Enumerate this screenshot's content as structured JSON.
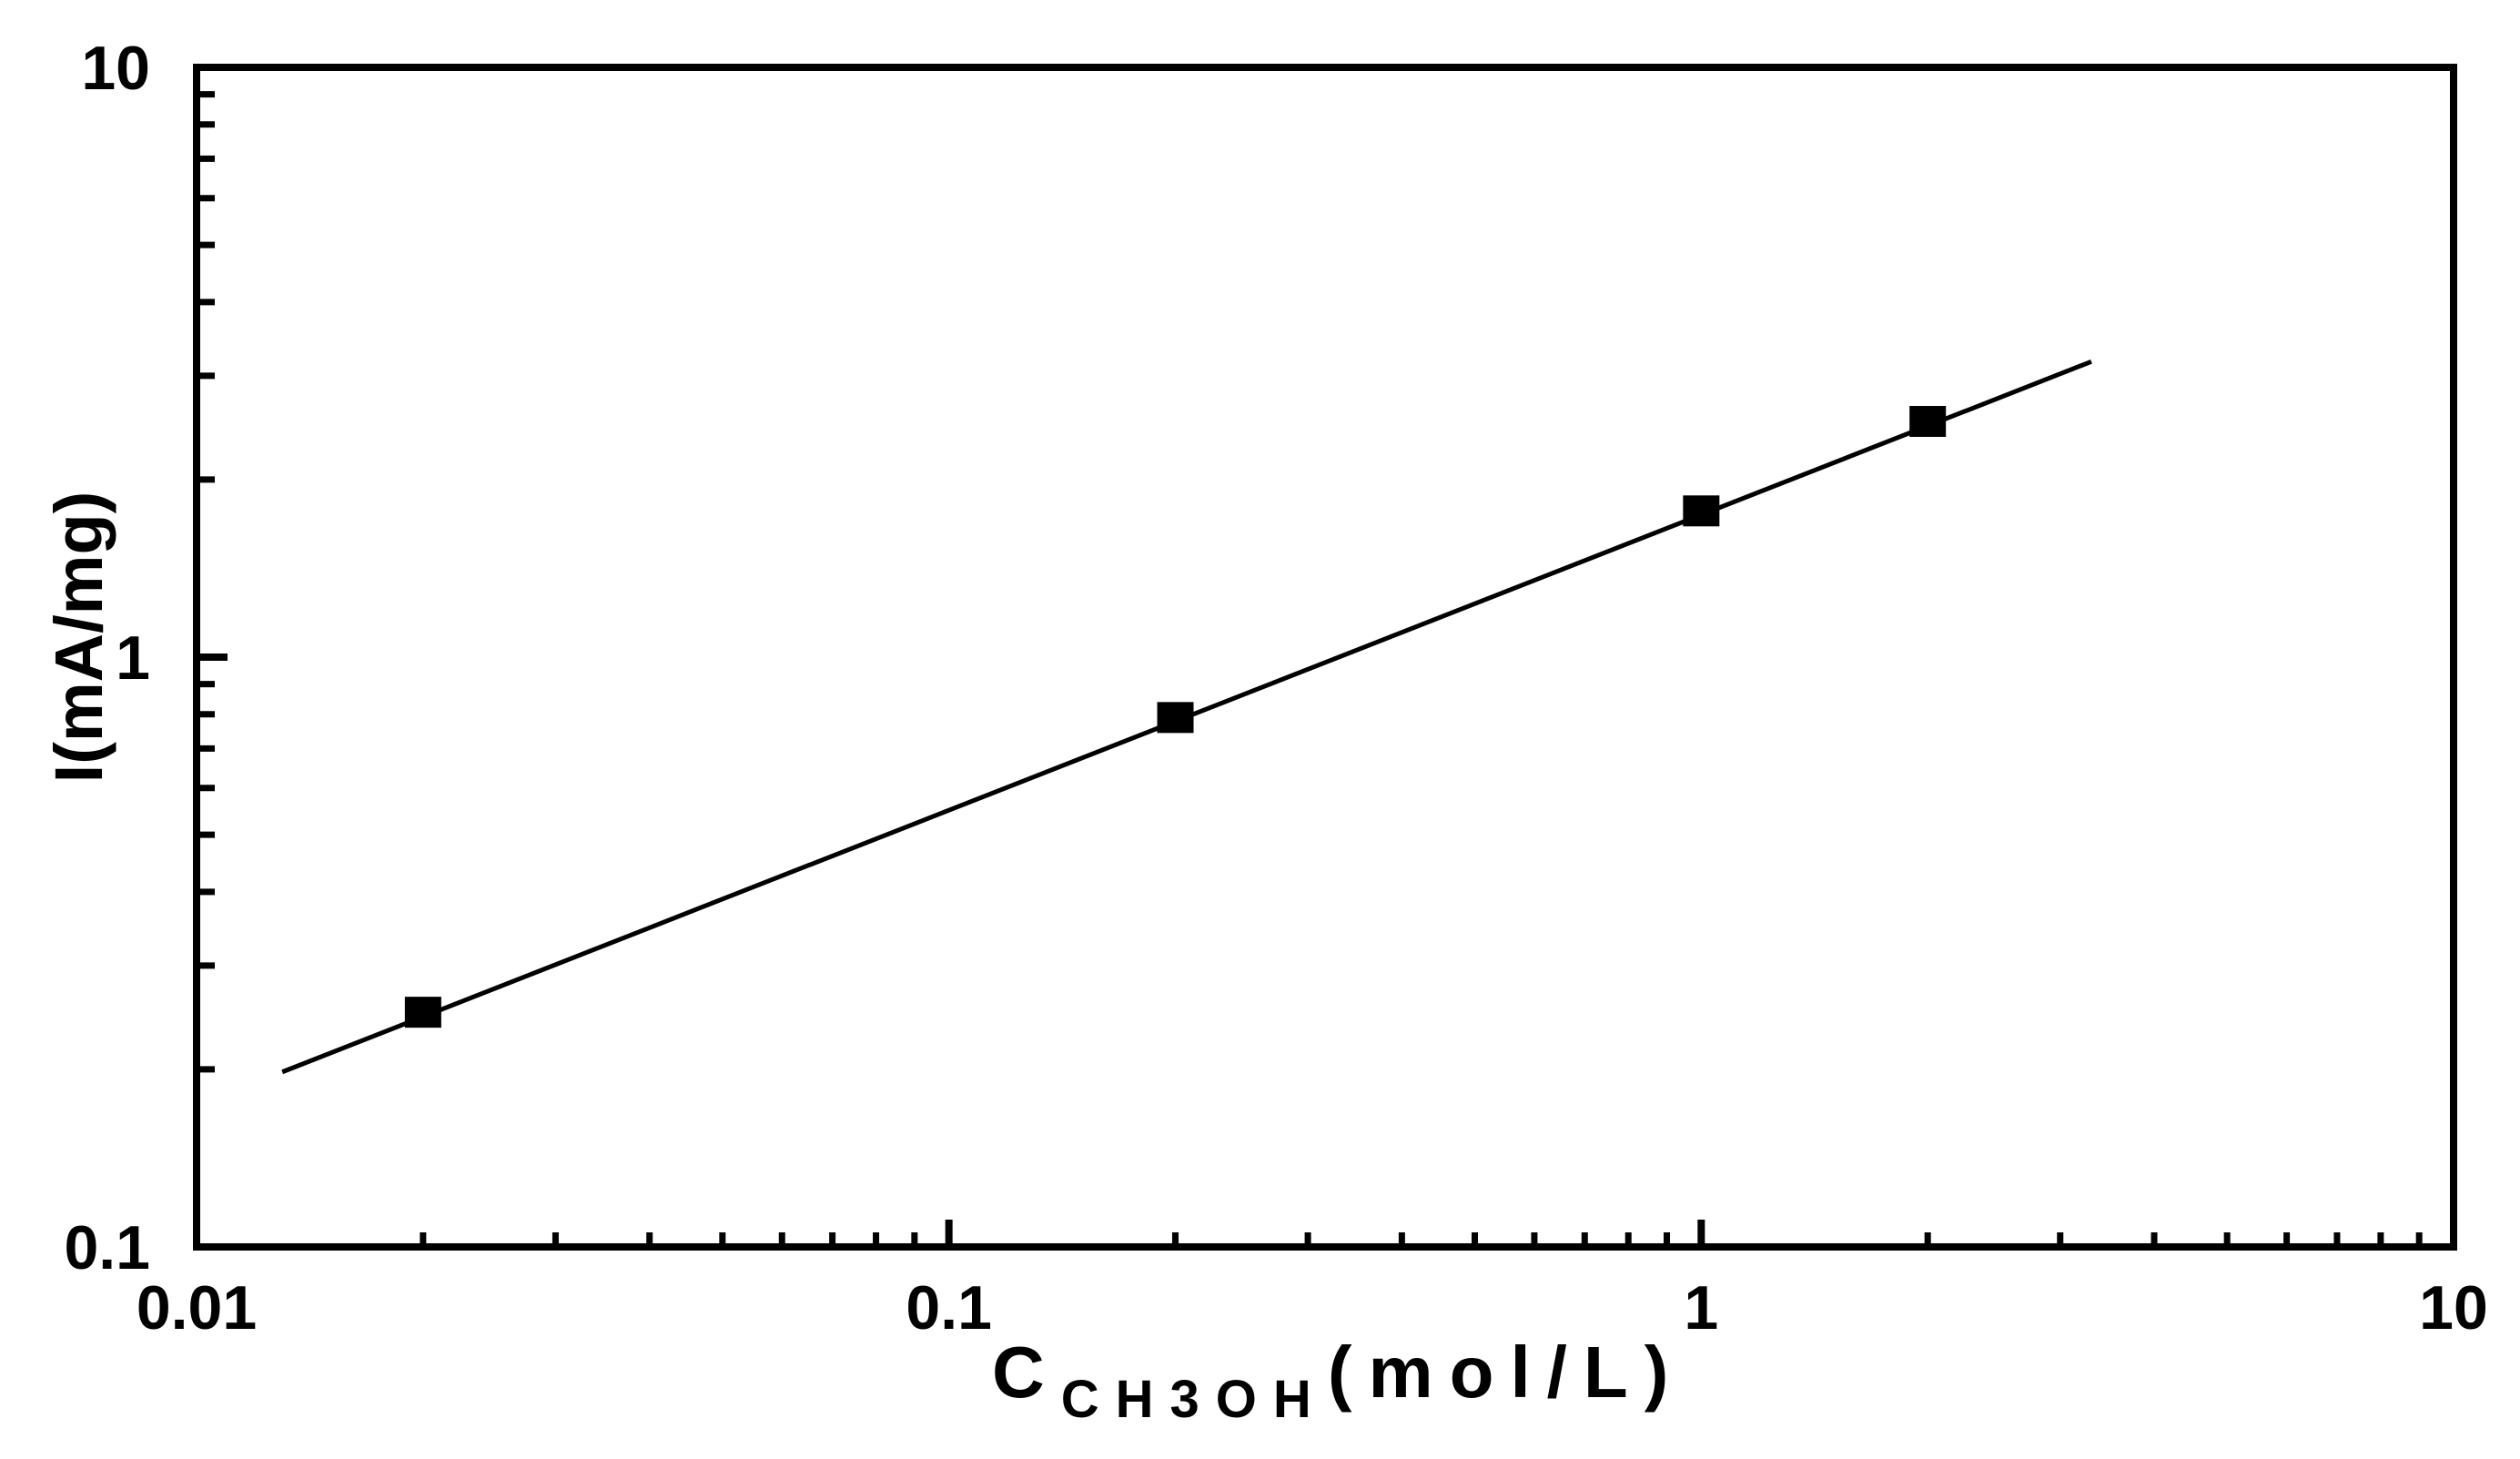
{
  "chart_data": {
    "type": "scatter",
    "x_scale": "log",
    "y_scale": "log",
    "xlim": [
      0.01,
      10
    ],
    "ylim": [
      0.1,
      10
    ],
    "x_ticks": [
      {
        "value": 0.01,
        "label": "0.01"
      },
      {
        "value": 0.1,
        "label": "0.1"
      },
      {
        "value": 1,
        "label": "1"
      },
      {
        "value": 10,
        "label": "10"
      }
    ],
    "y_ticks": [
      {
        "value": 0.1,
        "label": "0.1"
      },
      {
        "value": 1,
        "label": "1"
      },
      {
        "value": 10,
        "label": "10"
      }
    ],
    "xlabel": {
      "main": "C",
      "subscript": "CH3OH",
      "unit": "(mol/L)"
    },
    "ylabel": "I(mA/mg)",
    "series": [
      {
        "marker": "square",
        "x": [
          0.02,
          0.2,
          1,
          2
        ],
        "y": [
          0.25,
          0.79,
          1.77,
          2.51
        ]
      }
    ],
    "fit_line": {
      "x": [
        0.013,
        3.3
      ],
      "y": [
        0.198,
        3.17
      ]
    },
    "grid": false,
    "colors": {
      "axis": "#000000",
      "marker": "#000000",
      "line": "#000000"
    }
  }
}
